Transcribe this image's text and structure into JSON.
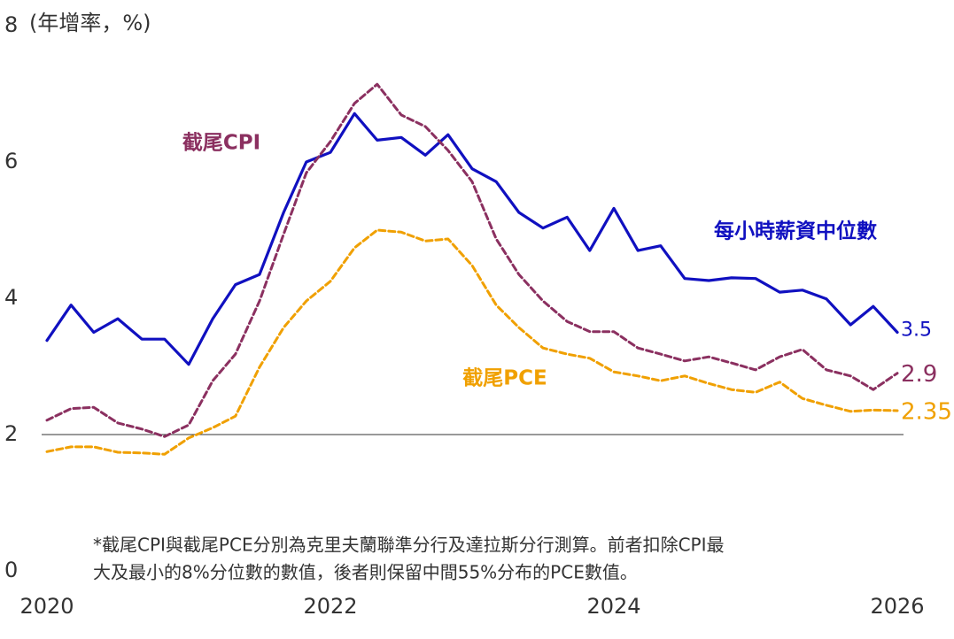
{
  "chart_data": {
    "type": "line",
    "y_label": "(年增率，%)",
    "footnote": [
      "*截尾CPI與截尾PCE分別為克里夫蘭聯準分行及達拉斯分行測算。前者扣除CPI最",
      "大及最小的8%分位數的數值，後者則保留中間55%分布的PCE數值。"
    ],
    "x": [
      2020,
      2020.17,
      2020.33,
      2020.5,
      2020.67,
      2020.83,
      2021,
      2021.17,
      2021.33,
      2021.5,
      2021.67,
      2021.83,
      2022,
      2022.17,
      2022.33,
      2022.5,
      2022.67,
      2022.83,
      2023,
      2023.17,
      2023.33,
      2023.5,
      2023.67,
      2023.83,
      2024,
      2024.17,
      2024.33,
      2024.5,
      2024.67,
      2024.83,
      2025,
      2025.17,
      2025.33,
      2025.5,
      2025.67,
      2025.83,
      2026
    ],
    "series": [
      {
        "name": "每小時薪資中位數",
        "color": "#1010c0",
        "dash": false,
        "values": [
          3.38,
          3.9,
          3.5,
          3.7,
          3.4,
          3.4,
          3.03,
          3.7,
          4.2,
          4.35,
          5.26,
          6.0,
          6.14,
          6.71,
          6.32,
          6.36,
          6.1,
          6.4,
          5.9,
          5.71,
          5.26,
          5.03,
          5.19,
          4.7,
          5.32,
          4.7,
          4.77,
          4.29,
          4.26,
          4.3,
          4.29,
          4.09,
          4.12,
          3.99,
          3.61,
          3.88,
          3.5
        ]
      },
      {
        "name": "截尾CPI",
        "color": "#8b3060",
        "dash": true,
        "values": [
          2.21,
          2.38,
          2.4,
          2.17,
          2.08,
          1.97,
          2.14,
          2.79,
          3.18,
          3.96,
          4.94,
          5.84,
          6.3,
          6.86,
          7.14,
          6.69,
          6.52,
          6.17,
          5.71,
          4.87,
          4.35,
          3.96,
          3.66,
          3.51,
          3.51,
          3.27,
          3.18,
          3.08,
          3.14,
          3.05,
          2.95,
          3.14,
          3.25,
          2.95,
          2.86,
          2.66,
          2.9
        ]
      },
      {
        "name": "截尾PCE",
        "color": "#f0a000",
        "dash": true,
        "values": [
          1.75,
          1.82,
          1.82,
          1.74,
          1.73,
          1.71,
          1.95,
          2.1,
          2.27,
          2.99,
          3.57,
          3.96,
          4.25,
          4.74,
          5.0,
          4.97,
          4.84,
          4.87,
          4.48,
          3.9,
          3.57,
          3.27,
          3.18,
          3.12,
          2.92,
          2.86,
          2.79,
          2.86,
          2.75,
          2.66,
          2.62,
          2.77,
          2.53,
          2.43,
          2.34,
          2.36,
          2.35
        ]
      }
    ],
    "xlim": [
      2020,
      2026
    ],
    "xticks": [
      2020,
      2022,
      2024,
      2026
    ],
    "ylim": [
      0,
      8
    ],
    "yticks": [
      0,
      2,
      4,
      6,
      8
    ],
    "reference_line": 2
  }
}
